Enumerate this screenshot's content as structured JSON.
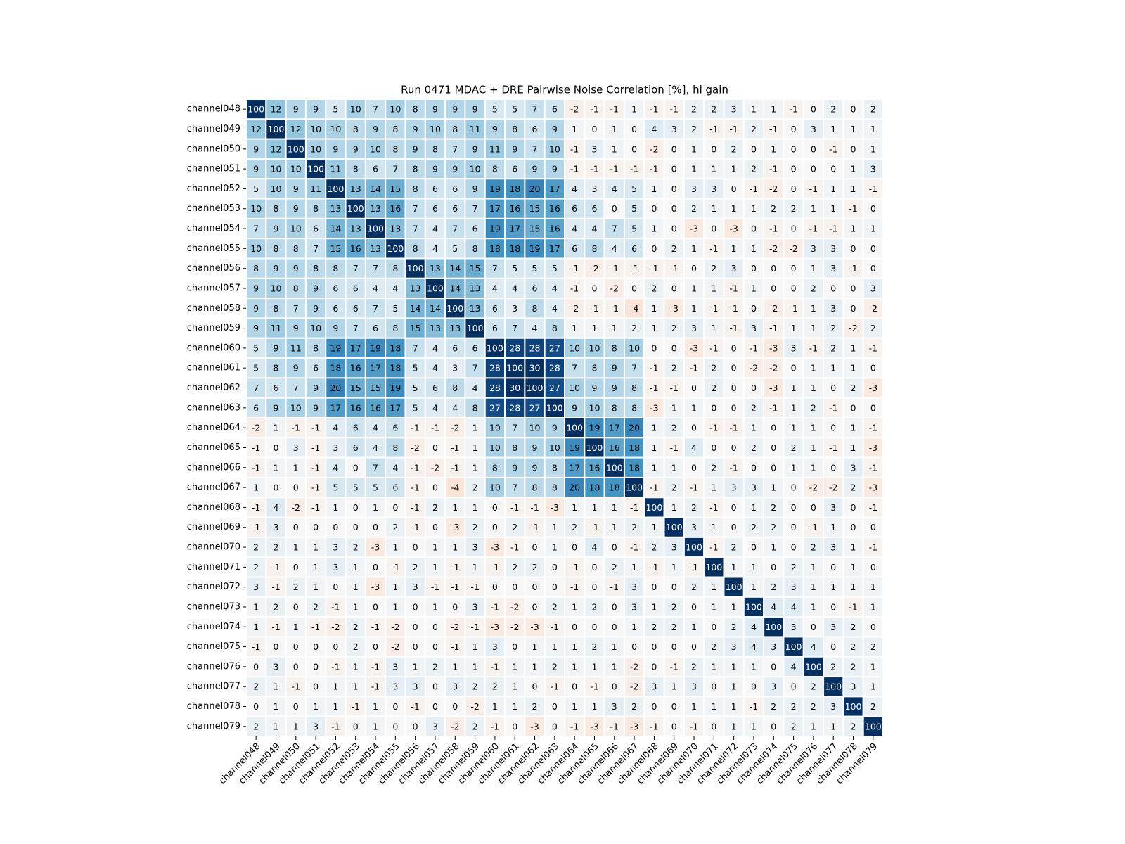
{
  "chart_data": {
    "type": "heatmap",
    "title": "Run 0471 MDAC + DRE Pairwise Noise Correlation [%], hi gain",
    "colormap": "RdBu",
    "color_range": [
      -30,
      30
    ],
    "categories": [
      "channel048",
      "channel049",
      "channel050",
      "channel051",
      "channel052",
      "channel053",
      "channel054",
      "channel055",
      "channel056",
      "channel057",
      "channel058",
      "channel059",
      "channel060",
      "channel061",
      "channel062",
      "channel063",
      "channel064",
      "channel065",
      "channel066",
      "channel067",
      "channel068",
      "channel069",
      "channel070",
      "channel071",
      "channel072",
      "channel073",
      "channel074",
      "channel075",
      "channel076",
      "channel077",
      "channel078",
      "channel079"
    ],
    "values": [
      [
        100,
        12,
        9,
        9,
        5,
        10,
        7,
        10,
        8,
        9,
        9,
        9,
        5,
        5,
        7,
        6,
        -2,
        -1,
        -1,
        1,
        -1,
        -1,
        2,
        2,
        3,
        1,
        1,
        -1,
        0,
        2,
        0,
        2
      ],
      [
        12,
        100,
        12,
        10,
        10,
        8,
        9,
        8,
        9,
        10,
        8,
        11,
        9,
        8,
        6,
        9,
        1,
        0,
        1,
        0,
        4,
        3,
        2,
        -1,
        -1,
        2,
        -1,
        0,
        3,
        1,
        1,
        1
      ],
      [
        9,
        12,
        100,
        10,
        9,
        9,
        10,
        8,
        9,
        8,
        7,
        9,
        11,
        9,
        7,
        10,
        -1,
        3,
        1,
        0,
        -2,
        0,
        1,
        0,
        2,
        0,
        1,
        0,
        0,
        -1,
        0,
        1
      ],
      [
        9,
        10,
        10,
        100,
        11,
        8,
        6,
        7,
        8,
        9,
        9,
        10,
        8,
        6,
        9,
        9,
        -1,
        -1,
        -1,
        -1,
        -1,
        0,
        1,
        1,
        1,
        2,
        -1,
        0,
        0,
        0,
        1,
        3
      ],
      [
        5,
        10,
        9,
        11,
        100,
        13,
        14,
        15,
        8,
        6,
        6,
        9,
        19,
        18,
        20,
        17,
        4,
        3,
        4,
        5,
        1,
        0,
        3,
        3,
        0,
        -1,
        -2,
        0,
        -1,
        1,
        1,
        -1
      ],
      [
        10,
        8,
        9,
        8,
        13,
        100,
        13,
        16,
        7,
        6,
        6,
        7,
        17,
        16,
        15,
        16,
        6,
        6,
        0,
        5,
        0,
        0,
        2,
        1,
        1,
        1,
        2,
        2,
        1,
        1,
        -1,
        0
      ],
      [
        7,
        9,
        10,
        6,
        14,
        13,
        100,
        13,
        7,
        4,
        7,
        6,
        19,
        17,
        15,
        16,
        4,
        4,
        7,
        5,
        1,
        0,
        -3,
        0,
        -3,
        0,
        -1,
        0,
        -1,
        -1,
        1,
        1
      ],
      [
        10,
        8,
        8,
        7,
        15,
        16,
        13,
        100,
        8,
        4,
        5,
        8,
        18,
        18,
        19,
        17,
        6,
        8,
        4,
        6,
        0,
        2,
        1,
        -1,
        1,
        1,
        -2,
        -2,
        3,
        3,
        0,
        0
      ],
      [
        8,
        9,
        9,
        8,
        8,
        7,
        7,
        8,
        100,
        13,
        14,
        15,
        7,
        5,
        5,
        5,
        -1,
        -2,
        -1,
        -1,
        -1,
        -1,
        0,
        2,
        3,
        0,
        0,
        0,
        1,
        3,
        -1,
        0
      ],
      [
        9,
        10,
        8,
        9,
        6,
        6,
        4,
        4,
        13,
        100,
        14,
        13,
        4,
        4,
        6,
        4,
        -1,
        0,
        -2,
        0,
        2,
        0,
        1,
        1,
        -1,
        1,
        0,
        0,
        2,
        0,
        0,
        3
      ],
      [
        9,
        8,
        7,
        9,
        6,
        6,
        7,
        5,
        14,
        14,
        100,
        13,
        6,
        3,
        8,
        4,
        -2,
        -1,
        -1,
        -4,
        1,
        -3,
        1,
        -1,
        -1,
        0,
        -2,
        -1,
        1,
        3,
        0,
        -2
      ],
      [
        9,
        11,
        9,
        10,
        9,
        7,
        6,
        8,
        15,
        13,
        13,
        100,
        6,
        7,
        4,
        8,
        1,
        1,
        1,
        2,
        1,
        2,
        3,
        1,
        -1,
        3,
        -1,
        1,
        1,
        2,
        -2,
        2
      ],
      [
        5,
        9,
        11,
        8,
        19,
        17,
        19,
        18,
        7,
        4,
        6,
        6,
        100,
        28,
        28,
        27,
        10,
        10,
        8,
        10,
        0,
        0,
        -3,
        -1,
        0,
        -1,
        -3,
        3,
        -1,
        2,
        1,
        -1
      ],
      [
        5,
        8,
        9,
        6,
        18,
        16,
        17,
        18,
        5,
        4,
        3,
        7,
        28,
        100,
        30,
        28,
        7,
        8,
        9,
        7,
        -1,
        2,
        -1,
        2,
        0,
        -2,
        -2,
        0,
        1,
        1,
        1,
        0
      ],
      [
        7,
        6,
        7,
        9,
        20,
        15,
        15,
        19,
        5,
        6,
        8,
        4,
        28,
        30,
        100,
        27,
        10,
        9,
        9,
        8,
        -1,
        -1,
        0,
        2,
        0,
        0,
        -3,
        1,
        1,
        0,
        2,
        -3
      ],
      [
        6,
        9,
        10,
        9,
        17,
        16,
        16,
        17,
        5,
        4,
        4,
        8,
        27,
        28,
        27,
        100,
        9,
        10,
        8,
        8,
        -3,
        1,
        1,
        0,
        0,
        2,
        -1,
        1,
        2,
        -1,
        0,
        0
      ],
      [
        -2,
        1,
        -1,
        -1,
        4,
        6,
        4,
        6,
        -1,
        -1,
        -2,
        1,
        10,
        7,
        10,
        9,
        100,
        19,
        17,
        20,
        1,
        2,
        0,
        -1,
        -1,
        1,
        0,
        1,
        1,
        0,
        1,
        -1
      ],
      [
        -1,
        0,
        3,
        -1,
        3,
        6,
        4,
        8,
        -2,
        0,
        -1,
        1,
        10,
        8,
        9,
        10,
        19,
        100,
        16,
        18,
        1,
        -1,
        4,
        0,
        0,
        2,
        0,
        2,
        1,
        -1,
        1,
        -3
      ],
      [
        -1,
        1,
        1,
        -1,
        4,
        0,
        7,
        4,
        -1,
        -2,
        -1,
        1,
        8,
        9,
        9,
        8,
        17,
        16,
        100,
        18,
        1,
        1,
        0,
        2,
        -1,
        0,
        0,
        1,
        1,
        0,
        3,
        -1
      ],
      [
        1,
        0,
        0,
        -1,
        5,
        5,
        5,
        6,
        -1,
        0,
        -4,
        2,
        10,
        7,
        8,
        8,
        20,
        18,
        18,
        100,
        -1,
        2,
        -1,
        1,
        3,
        3,
        1,
        0,
        -2,
        -2,
        2,
        -3
      ],
      [
        -1,
        4,
        -2,
        -1,
        1,
        0,
        1,
        0,
        -1,
        2,
        1,
        1,
        0,
        -1,
        -1,
        -3,
        1,
        1,
        1,
        -1,
        100,
        1,
        2,
        -1,
        0,
        1,
        2,
        0,
        0,
        3,
        0,
        -1
      ],
      [
        -1,
        3,
        0,
        0,
        0,
        0,
        0,
        2,
        -1,
        0,
        -3,
        2,
        0,
        2,
        -1,
        1,
        2,
        -1,
        1,
        2,
        1,
        100,
        3,
        1,
        0,
        2,
        2,
        0,
        -1,
        1,
        0,
        0
      ],
      [
        2,
        2,
        1,
        1,
        3,
        2,
        -3,
        1,
        0,
        1,
        1,
        3,
        -3,
        -1,
        0,
        1,
        0,
        4,
        0,
        -1,
        2,
        3,
        100,
        -1,
        2,
        0,
        1,
        0,
        2,
        3,
        1,
        -1
      ],
      [
        2,
        -1,
        0,
        1,
        3,
        1,
        0,
        -1,
        2,
        1,
        -1,
        1,
        -1,
        2,
        2,
        0,
        -1,
        0,
        2,
        1,
        -1,
        1,
        -1,
        100,
        1,
        1,
        0,
        2,
        1,
        0,
        1,
        0
      ],
      [
        3,
        -1,
        2,
        1,
        0,
        1,
        -3,
        1,
        3,
        -1,
        -1,
        -1,
        0,
        0,
        0,
        0,
        -1,
        0,
        -1,
        3,
        0,
        0,
        2,
        1,
        100,
        1,
        2,
        3,
        1,
        1,
        1,
        1
      ],
      [
        1,
        2,
        0,
        2,
        -1,
        1,
        0,
        1,
        0,
        1,
        0,
        3,
        -1,
        -2,
        0,
        2,
        1,
        2,
        0,
        3,
        1,
        2,
        0,
        1,
        1,
        100,
        4,
        4,
        1,
        0,
        -1,
        1
      ],
      [
        1,
        -1,
        1,
        -1,
        -2,
        2,
        -1,
        -2,
        0,
        0,
        -2,
        -1,
        -3,
        -2,
        -3,
        -1,
        0,
        0,
        0,
        1,
        2,
        2,
        1,
        0,
        2,
        4,
        100,
        3,
        0,
        3,
        2,
        0
      ],
      [
        -1,
        0,
        0,
        0,
        0,
        2,
        0,
        -2,
        0,
        0,
        -1,
        1,
        3,
        0,
        1,
        1,
        1,
        2,
        1,
        0,
        0,
        0,
        0,
        2,
        3,
        4,
        3,
        100,
        4,
        0,
        2,
        2
      ],
      [
        0,
        3,
        0,
        0,
        -1,
        1,
        -1,
        3,
        1,
        2,
        1,
        1,
        -1,
        1,
        1,
        2,
        1,
        1,
        1,
        -2,
        0,
        -1,
        2,
        1,
        1,
        1,
        0,
        4,
        100,
        2,
        2,
        1
      ],
      [
        2,
        1,
        -1,
        0,
        1,
        1,
        -1,
        3,
        3,
        0,
        3,
        2,
        2,
        1,
        0,
        -1,
        0,
        -1,
        0,
        -2,
        3,
        1,
        3,
        0,
        1,
        0,
        3,
        0,
        2,
        100,
        3,
        1
      ],
      [
        0,
        1,
        0,
        1,
        1,
        -1,
        1,
        0,
        -1,
        0,
        0,
        -2,
        1,
        1,
        2,
        0,
        1,
        1,
        3,
        2,
        0,
        0,
        1,
        1,
        1,
        -1,
        2,
        2,
        2,
        3,
        100,
        2
      ],
      [
        2,
        1,
        1,
        3,
        -1,
        0,
        1,
        0,
        0,
        3,
        -2,
        2,
        -1,
        0,
        -3,
        0,
        -1,
        -3,
        -1,
        -3,
        -1,
        0,
        -1,
        0,
        1,
        1,
        0,
        2,
        1,
        1,
        2,
        100
      ]
    ]
  }
}
